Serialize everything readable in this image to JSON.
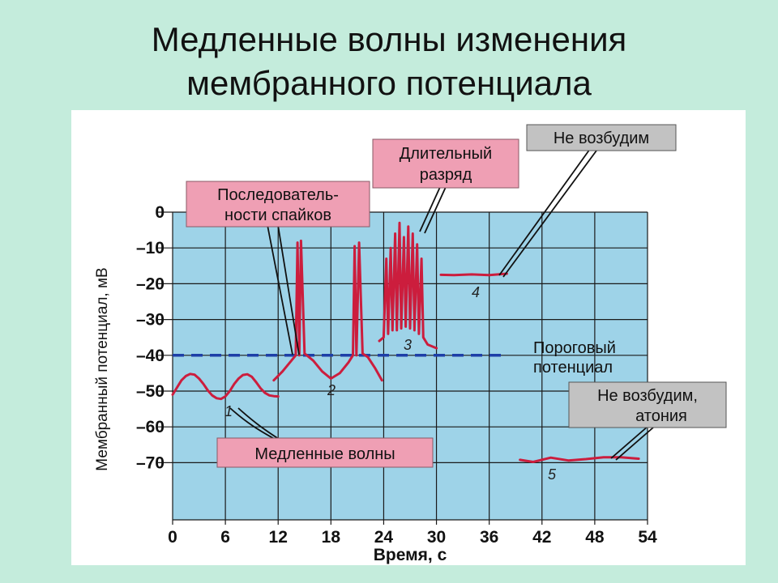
{
  "slide": {
    "title_line1": "Медленные волны изменения",
    "title_line2": "мембранного потенциала"
  },
  "chart_data": {
    "type": "line",
    "title": "",
    "xlabel": "Время, с",
    "ylabel": "Мембранный потенциал, мВ",
    "xlim": [
      0,
      54
    ],
    "ylim": [
      -80,
      0
    ],
    "x_ticks": [
      "0",
      "6",
      "12",
      "18",
      "24",
      "30",
      "36",
      "42",
      "48",
      "54"
    ],
    "y_ticks": [
      "0",
      "–10",
      "–20",
      "–30",
      "–40",
      "–50",
      "–60",
      "–70"
    ],
    "grid": true,
    "threshold": {
      "value": -40,
      "label_line1": "Пороговый",
      "label_line2": "потенциал",
      "color": "#1d3fa8"
    },
    "series": [
      {
        "id": "1",
        "label": "1",
        "x": [
          0,
          0.5,
          1,
          1.5,
          2,
          2.5,
          3,
          3.5,
          4,
          4.5,
          5,
          5.5,
          6,
          6.5,
          7,
          7.5,
          8,
          8.5,
          9,
          9.5,
          10,
          10.5,
          11,
          11.5,
          12
        ],
        "y": [
          -51,
          -49,
          -47,
          -45.8,
          -45.2,
          -45.4,
          -46.5,
          -48,
          -49.8,
          -51.2,
          -52,
          -52.2,
          -51.5,
          -50,
          -48,
          -46.5,
          -45.5,
          -45.3,
          -46,
          -47.5,
          -49.2,
          -50.5,
          -51.2,
          -51.4,
          -51.5
        ]
      },
      {
        "id": "2",
        "label": "2",
        "x": [
          11.5,
          12.5,
          13.5,
          14,
          14.2,
          14.4,
          14.6,
          15,
          15.5,
          16,
          17,
          18,
          19,
          20,
          20.5,
          20.7,
          20.9,
          21.2,
          21.6,
          22.2,
          23,
          23.8
        ],
        "y": [
          -47,
          -44.5,
          -41.5,
          -40,
          -8.5,
          -40,
          -8,
          -39.5,
          -40.5,
          -41.5,
          -44.5,
          -46.5,
          -45,
          -42,
          -40,
          -9.5,
          -40,
          -8.5,
          -39.5,
          -40.5,
          -43.5,
          -47
        ]
      },
      {
        "id": "3",
        "label": "3",
        "x": [
          23.5,
          24,
          24.3,
          24.5,
          24.8,
          25,
          25.3,
          25.5,
          25.8,
          26,
          26.3,
          26.5,
          26.8,
          27,
          27.3,
          27.5,
          27.8,
          28,
          28.3,
          28.5,
          29,
          30
        ],
        "y": [
          -36,
          -35,
          -13,
          -34,
          -10,
          -33,
          -6,
          -33,
          -3,
          -32.5,
          -7,
          -32,
          -4,
          -32.5,
          -6,
          -33,
          -9,
          -34,
          -13,
          -35,
          -37,
          -38
        ]
      },
      {
        "id": "4",
        "label": "4",
        "x": [
          30.5,
          32,
          34,
          36,
          38
        ],
        "y": [
          -17.5,
          -17.6,
          -17.4,
          -17.6,
          -17.2
        ]
      },
      {
        "id": "5",
        "label": "5",
        "x": [
          39.5,
          41,
          43,
          45,
          47,
          49,
          51,
          53
        ],
        "y": [
          -69.2,
          -69.8,
          -68.6,
          -69.4,
          -69,
          -68.5,
          -68.5,
          -68.9
        ]
      }
    ],
    "callouts": [
      {
        "id": "slow-waves",
        "text_line1": "Медленные волны",
        "text_line2": ""
      },
      {
        "id": "spike-sequences",
        "text_line1": "Последователь-",
        "text_line2": "ности спайков"
      },
      {
        "id": "prolonged-discharge",
        "text_line1": "Длительный",
        "text_line2": "разряд"
      },
      {
        "id": "not-excitable",
        "text_line1": "Не возбудим",
        "text_line2": ""
      },
      {
        "id": "not-excitable-atonia",
        "text_line1": "Не возбудим,",
        "text_line2": "атония"
      }
    ],
    "colors": {
      "plot_background": "#9ed3e8",
      "grid": "#1a1a1a",
      "trace": "#cc1d3d",
      "pink_callout": "#ef9fb4",
      "gray_callout": "#c2c2c2"
    }
  }
}
